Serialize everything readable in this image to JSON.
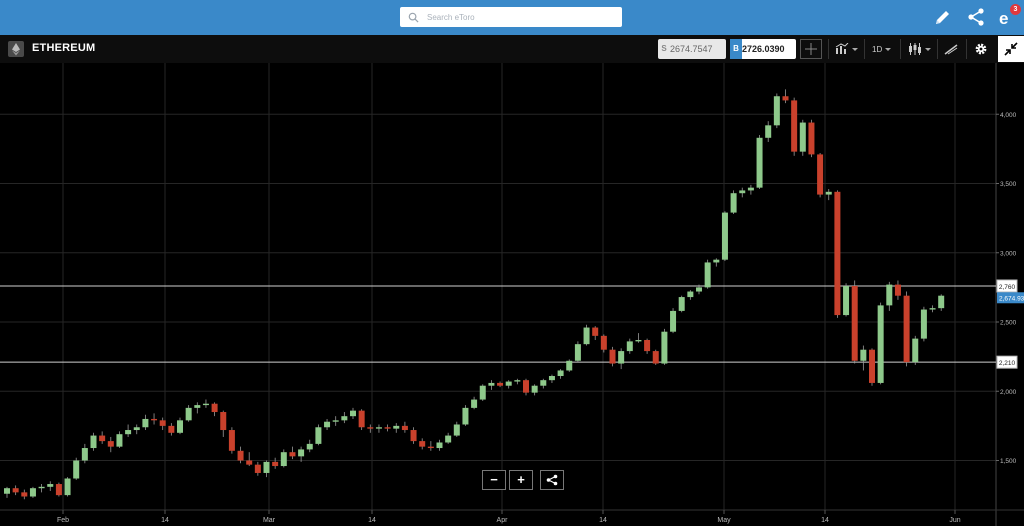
{
  "header": {
    "search_placeholder": "Search eToro",
    "notifications_count": "3",
    "icons": [
      "search-icon",
      "pencil-icon",
      "share-icon",
      "etoro-logo-icon"
    ]
  },
  "toolbar": {
    "asset_name": "ETHEREUM",
    "sell_tag": "S",
    "sell_price": "2674.7547",
    "buy_tag": "B",
    "buy_price": "2726.0390",
    "timeframe": "1D",
    "icons": [
      "crosshair-icon",
      "chart-type-icon",
      "candles-icon",
      "draw-icon",
      "gear-icon",
      "fullscreen-icon"
    ]
  },
  "zoom": {
    "minus": "−",
    "plus": "+"
  },
  "colors": {
    "up": "#8ec98b",
    "down": "#c9412c",
    "bg": "#000000",
    "accent": "#3a89c9"
  },
  "chart_data": {
    "type": "candlestick",
    "title": "",
    "xlabel": "",
    "ylabel": "",
    "ylim": [
      1150,
      4400
    ],
    "grid": true,
    "y_ticks": [
      "1,500",
      "2,000",
      "2,500",
      "3,000",
      "3,500",
      "4,000"
    ],
    "x_ticks": [
      "Feb",
      "14",
      "Mar",
      "14",
      "Apr",
      "14",
      "May",
      "14",
      "Jun"
    ],
    "horizontal_lines": [
      {
        "label": "2,760",
        "value": 2760
      },
      {
        "label": "2,210",
        "value": 2210
      }
    ],
    "current_price_label": "2,674.93",
    "current_price": 2674.93,
    "candles": [
      [
        1260,
        1310,
        1230,
        1300
      ],
      [
        1300,
        1320,
        1250,
        1270
      ],
      [
        1270,
        1290,
        1220,
        1240
      ],
      [
        1240,
        1310,
        1230,
        1300
      ],
      [
        1300,
        1330,
        1270,
        1310
      ],
      [
        1310,
        1350,
        1280,
        1330
      ],
      [
        1330,
        1340,
        1240,
        1250
      ],
      [
        1250,
        1380,
        1240,
        1370
      ],
      [
        1370,
        1520,
        1360,
        1500
      ],
      [
        1500,
        1620,
        1480,
        1590
      ],
      [
        1590,
        1700,
        1570,
        1680
      ],
      [
        1680,
        1710,
        1620,
        1640
      ],
      [
        1640,
        1670,
        1560,
        1600
      ],
      [
        1600,
        1710,
        1590,
        1690
      ],
      [
        1690,
        1760,
        1670,
        1720
      ],
      [
        1720,
        1760,
        1690,
        1740
      ],
      [
        1740,
        1830,
        1720,
        1800
      ],
      [
        1800,
        1840,
        1760,
        1790
      ],
      [
        1790,
        1810,
        1720,
        1750
      ],
      [
        1750,
        1770,
        1680,
        1700
      ],
      [
        1700,
        1810,
        1690,
        1790
      ],
      [
        1790,
        1900,
        1780,
        1880
      ],
      [
        1880,
        1920,
        1840,
        1900
      ],
      [
        1900,
        1940,
        1880,
        1910
      ],
      [
        1910,
        1920,
        1820,
        1850
      ],
      [
        1850,
        1860,
        1670,
        1720
      ],
      [
        1720,
        1740,
        1550,
        1570
      ],
      [
        1570,
        1600,
        1480,
        1500
      ],
      [
        1500,
        1560,
        1460,
        1470
      ],
      [
        1470,
        1490,
        1390,
        1410
      ],
      [
        1410,
        1500,
        1380,
        1490
      ],
      [
        1490,
        1520,
        1440,
        1460
      ],
      [
        1460,
        1580,
        1450,
        1560
      ],
      [
        1560,
        1600,
        1510,
        1530
      ],
      [
        1530,
        1600,
        1490,
        1580
      ],
      [
        1580,
        1650,
        1560,
        1620
      ],
      [
        1620,
        1760,
        1610,
        1740
      ],
      [
        1740,
        1800,
        1720,
        1780
      ],
      [
        1780,
        1820,
        1750,
        1790
      ],
      [
        1790,
        1850,
        1770,
        1820
      ],
      [
        1820,
        1880,
        1800,
        1860
      ],
      [
        1860,
        1870,
        1720,
        1740
      ],
      [
        1740,
        1760,
        1700,
        1730
      ],
      [
        1730,
        1760,
        1700,
        1740
      ],
      [
        1740,
        1760,
        1710,
        1730
      ],
      [
        1730,
        1770,
        1700,
        1750
      ],
      [
        1750,
        1780,
        1700,
        1720
      ],
      [
        1720,
        1740,
        1620,
        1640
      ],
      [
        1640,
        1660,
        1580,
        1600
      ],
      [
        1600,
        1640,
        1570,
        1590
      ],
      [
        1590,
        1650,
        1570,
        1630
      ],
      [
        1630,
        1700,
        1620,
        1680
      ],
      [
        1680,
        1780,
        1670,
        1760
      ],
      [
        1760,
        1900,
        1750,
        1880
      ],
      [
        1880,
        1960,
        1870,
        1940
      ],
      [
        1940,
        2050,
        1930,
        2040
      ],
      [
        2040,
        2080,
        2010,
        2060
      ],
      [
        2060,
        2070,
        2030,
        2040
      ],
      [
        2040,
        2080,
        2020,
        2070
      ],
      [
        2070,
        2090,
        2050,
        2080
      ],
      [
        2080,
        2090,
        1970,
        1990
      ],
      [
        1990,
        2050,
        1970,
        2040
      ],
      [
        2040,
        2090,
        2020,
        2080
      ],
      [
        2080,
        2120,
        2060,
        2110
      ],
      [
        2110,
        2160,
        2090,
        2150
      ],
      [
        2150,
        2230,
        2140,
        2220
      ],
      [
        2220,
        2360,
        2210,
        2340
      ],
      [
        2340,
        2480,
        2330,
        2460
      ],
      [
        2460,
        2470,
        2370,
        2400
      ],
      [
        2400,
        2410,
        2280,
        2300
      ],
      [
        2300,
        2320,
        2180,
        2200
      ],
      [
        2200,
        2310,
        2160,
        2290
      ],
      [
        2290,
        2380,
        2270,
        2360
      ],
      [
        2360,
        2420,
        2350,
        2370
      ],
      [
        2370,
        2380,
        2270,
        2290
      ],
      [
        2290,
        2300,
        2190,
        2200
      ],
      [
        2200,
        2450,
        2190,
        2430
      ],
      [
        2430,
        2600,
        2420,
        2580
      ],
      [
        2580,
        2690,
        2570,
        2680
      ],
      [
        2680,
        2730,
        2660,
        2720
      ],
      [
        2720,
        2770,
        2700,
        2750
      ],
      [
        2750,
        2950,
        2740,
        2930
      ],
      [
        2930,
        2960,
        2900,
        2950
      ],
      [
        2950,
        3300,
        2940,
        3290
      ],
      [
        3290,
        3450,
        3280,
        3430
      ],
      [
        3430,
        3470,
        3400,
        3450
      ],
      [
        3450,
        3490,
        3420,
        3470
      ],
      [
        3470,
        3850,
        3460,
        3830
      ],
      [
        3830,
        3950,
        3800,
        3920
      ],
      [
        3920,
        4150,
        3900,
        4130
      ],
      [
        4130,
        4180,
        4080,
        4100
      ],
      [
        4100,
        4120,
        3700,
        3730
      ],
      [
        3730,
        3960,
        3700,
        3940
      ],
      [
        3940,
        3960,
        3690,
        3710
      ],
      [
        3710,
        3720,
        3400,
        3420
      ],
      [
        3420,
        3460,
        3380,
        3440
      ],
      [
        3440,
        3450,
        2530,
        2550
      ],
      [
        2550,
        2780,
        2540,
        2760
      ],
      [
        2760,
        2800,
        2200,
        2220
      ],
      [
        2220,
        2330,
        2150,
        2300
      ],
      [
        2300,
        2310,
        2040,
        2060
      ],
      [
        2060,
        2640,
        2050,
        2620
      ],
      [
        2620,
        2790,
        2580,
        2770
      ],
      [
        2770,
        2800,
        2660,
        2690
      ],
      [
        2690,
        2720,
        2180,
        2210
      ],
      [
        2210,
        2400,
        2190,
        2380
      ],
      [
        2380,
        2610,
        2360,
        2590
      ],
      [
        2590,
        2620,
        2570,
        2600
      ],
      [
        2600,
        2700,
        2580,
        2690
      ]
    ]
  }
}
